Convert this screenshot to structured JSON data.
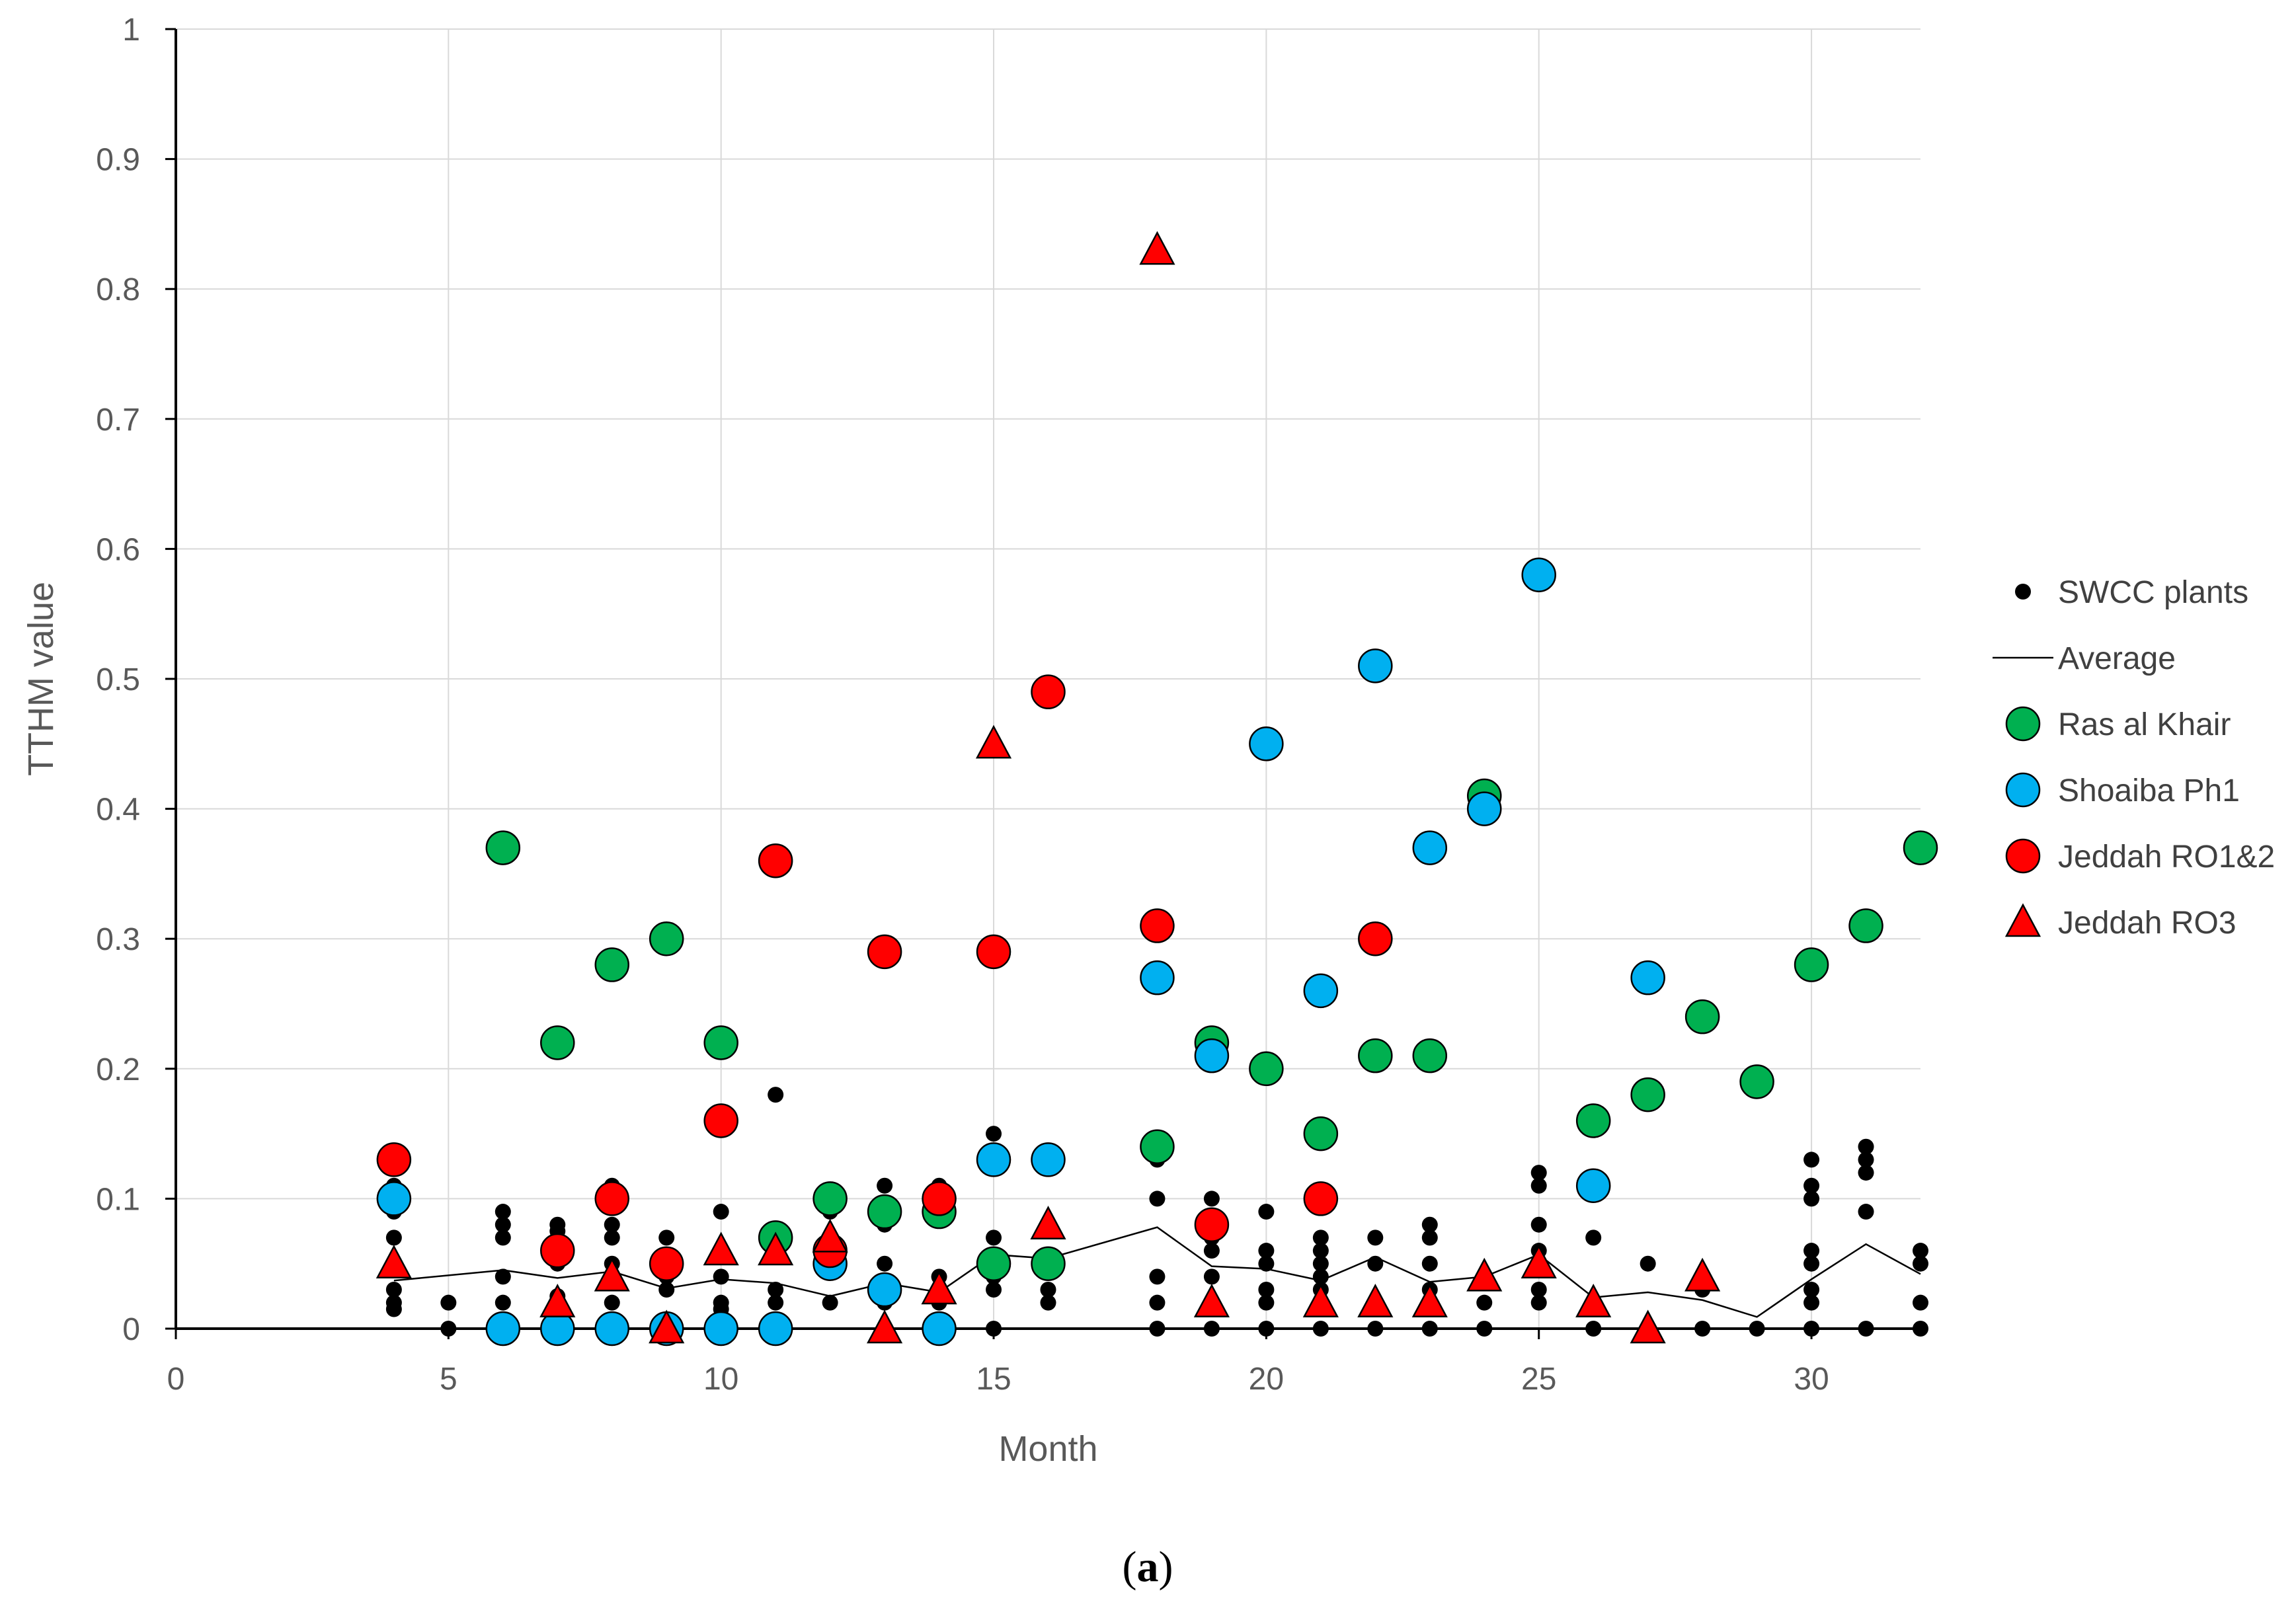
{
  "caption_letter": "a",
  "colors": {
    "swcc": "#000000",
    "average": "#000000",
    "ras_al_khair": "#00b050",
    "shoaiba": "#00b0f0",
    "jeddah_ro12": "#ff0000",
    "jeddah_ro3": "#ff0000",
    "grid": "#d9d9d9",
    "text": "#595959"
  },
  "chart_data": {
    "type": "scatter",
    "title": "",
    "xlabel": "Month",
    "ylabel": "TTHM value",
    "xlim": [
      0,
      32
    ],
    "ylim": [
      0,
      1
    ],
    "xticks": [
      0,
      5,
      10,
      15,
      20,
      25,
      30
    ],
    "xtick_labels": [
      "0",
      "5",
      "10",
      "15",
      "20",
      "25",
      "30"
    ],
    "yticks": [
      0,
      0.1,
      0.2,
      0.3,
      0.4,
      0.5,
      0.6,
      0.7,
      0.8,
      0.9,
      1
    ],
    "ytick_labels": [
      "0",
      "0.1",
      "0.2",
      "0.3",
      "0.4",
      "0.5",
      "0.6",
      "0.7",
      "0.8",
      "0.9",
      "1"
    ],
    "grid": "vertical and horizontal major gridlines",
    "legend_position": "right",
    "legend": [
      "SWCC plants",
      "Average",
      "Ras al Khair",
      "Shoaiba Ph1",
      "Jeddah RO1&2",
      "Jeddah RO3"
    ],
    "series": [
      {
        "name": "SWCC plants",
        "key": "swcc",
        "marker": "small-circle",
        "points": [
          [
            4,
            0.11
          ],
          [
            4,
            0.09
          ],
          [
            4,
            0.07
          ],
          [
            4,
            0.03
          ],
          [
            4,
            0.02
          ],
          [
            4,
            0.015
          ],
          [
            5,
            0.02
          ],
          [
            5,
            0.0
          ],
          [
            6,
            0.09
          ],
          [
            6,
            0.08
          ],
          [
            6,
            0.07
          ],
          [
            6,
            0.04
          ],
          [
            6,
            0.02
          ],
          [
            7,
            0.08
          ],
          [
            7,
            0.075
          ],
          [
            7,
            0.05
          ],
          [
            7,
            0.025
          ],
          [
            7,
            0.015
          ],
          [
            8,
            0.11
          ],
          [
            8,
            0.08
          ],
          [
            8,
            0.07
          ],
          [
            8,
            0.05
          ],
          [
            8,
            0.02
          ],
          [
            9,
            0.07
          ],
          [
            9,
            0.055
          ],
          [
            9,
            0.04
          ],
          [
            9,
            0.03
          ],
          [
            10,
            0.09
          ],
          [
            10,
            0.04
          ],
          [
            10,
            0.02
          ],
          [
            10,
            0.015
          ],
          [
            10,
            0.0
          ],
          [
            11,
            0.18
          ],
          [
            11,
            0.07
          ],
          [
            11,
            0.03
          ],
          [
            11,
            0.02
          ],
          [
            12,
            0.09
          ],
          [
            12,
            0.06
          ],
          [
            12,
            0.02
          ],
          [
            13,
            0.11
          ],
          [
            13,
            0.08
          ],
          [
            13,
            0.05
          ],
          [
            13,
            0.02
          ],
          [
            14,
            0.11
          ],
          [
            14,
            0.04
          ],
          [
            14,
            0.02
          ],
          [
            15,
            0.15
          ],
          [
            15,
            0.07
          ],
          [
            15,
            0.04
          ],
          [
            15,
            0.03
          ],
          [
            15,
            0.0
          ],
          [
            16,
            0.03
          ],
          [
            16,
            0.02
          ],
          [
            18,
            0.13
          ],
          [
            18,
            0.1
          ],
          [
            18,
            0.04
          ],
          [
            18,
            0.02
          ],
          [
            18,
            0.0
          ],
          [
            19,
            0.1
          ],
          [
            19,
            0.07
          ],
          [
            19,
            0.06
          ],
          [
            19,
            0.04
          ],
          [
            19,
            0.02
          ],
          [
            19,
            0.0
          ],
          [
            20,
            0.09
          ],
          [
            20,
            0.06
          ],
          [
            20,
            0.05
          ],
          [
            20,
            0.03
          ],
          [
            20,
            0.02
          ],
          [
            20,
            0.0
          ],
          [
            21,
            0.07
          ],
          [
            21,
            0.06
          ],
          [
            21,
            0.05
          ],
          [
            21,
            0.04
          ],
          [
            21,
            0.03
          ],
          [
            21,
            0.02
          ],
          [
            21,
            0.0
          ],
          [
            22,
            0.07
          ],
          [
            22,
            0.05
          ],
          [
            22,
            0.02
          ],
          [
            22,
            0.0
          ],
          [
            23,
            0.08
          ],
          [
            23,
            0.07
          ],
          [
            23,
            0.05
          ],
          [
            23,
            0.03
          ],
          [
            23,
            0.02
          ],
          [
            23,
            0.0
          ],
          [
            24,
            0.04
          ],
          [
            24,
            0.02
          ],
          [
            24,
            0.0
          ],
          [
            25,
            0.12
          ],
          [
            25,
            0.11
          ],
          [
            25,
            0.08
          ],
          [
            25,
            0.06
          ],
          [
            25,
            0.03
          ],
          [
            25,
            0.02
          ],
          [
            26,
            0.07
          ],
          [
            26,
            0.0
          ],
          [
            27,
            0.05
          ],
          [
            27,
            0.0
          ],
          [
            28,
            0.03
          ],
          [
            28,
            0.0
          ],
          [
            29,
            0.0
          ],
          [
            30,
            0.13
          ],
          [
            30,
            0.11
          ],
          [
            30,
            0.1
          ],
          [
            30,
            0.06
          ],
          [
            30,
            0.05
          ],
          [
            30,
            0.03
          ],
          [
            30,
            0.02
          ],
          [
            30,
            0.0
          ],
          [
            31,
            0.14
          ],
          [
            31,
            0.13
          ],
          [
            31,
            0.12
          ],
          [
            31,
            0.09
          ],
          [
            31,
            0.0
          ],
          [
            32,
            0.06
          ],
          [
            32,
            0.05
          ],
          [
            32,
            0.02
          ],
          [
            32,
            0.0
          ]
        ]
      },
      {
        "name": "Average",
        "key": "average",
        "marker": "line",
        "points": [
          [
            4,
            0.037
          ],
          [
            6,
            0.045
          ],
          [
            7,
            0.039
          ],
          [
            8,
            0.044
          ],
          [
            9,
            0.031
          ],
          [
            10,
            0.038
          ],
          [
            11,
            0.035
          ],
          [
            12,
            0.025
          ],
          [
            13,
            0.035
          ],
          [
            14,
            0.028
          ],
          [
            15,
            0.057
          ],
          [
            16,
            0.054
          ],
          [
            18,
            0.078
          ],
          [
            19,
            0.048
          ],
          [
            20,
            0.046
          ],
          [
            21,
            0.037
          ],
          [
            22,
            0.055
          ],
          [
            23,
            0.036
          ],
          [
            24,
            0.04
          ],
          [
            25,
            0.057
          ],
          [
            26,
            0.024
          ],
          [
            27,
            0.028
          ],
          [
            28,
            0.022
          ],
          [
            29,
            0.009
          ],
          [
            30,
            0.038
          ],
          [
            31,
            0.065
          ],
          [
            32,
            0.042
          ]
        ]
      },
      {
        "name": "Ras al Khair",
        "key": "ras_al_khair",
        "marker": "circle",
        "points": [
          [
            6,
            0.37
          ],
          [
            7,
            0.22
          ],
          [
            8,
            0.28
          ],
          [
            9,
            0.3
          ],
          [
            10,
            0.22
          ],
          [
            11,
            0.07
          ],
          [
            12,
            0.1
          ],
          [
            13,
            0.09
          ],
          [
            14,
            0.09
          ],
          [
            15,
            0.05
          ],
          [
            16,
            0.05
          ],
          [
            18,
            0.14
          ],
          [
            19,
            0.22
          ],
          [
            20,
            0.2
          ],
          [
            21,
            0.15
          ],
          [
            22,
            0.21
          ],
          [
            23,
            0.21
          ],
          [
            24,
            0.41
          ],
          [
            26,
            0.16
          ],
          [
            27,
            0.18
          ],
          [
            28,
            0.24
          ],
          [
            29,
            0.19
          ],
          [
            30,
            0.28
          ],
          [
            31,
            0.31
          ],
          [
            32,
            0.37
          ]
        ]
      },
      {
        "name": "Shoaiba Ph1",
        "key": "shoaiba",
        "marker": "circle",
        "points": [
          [
            4,
            0.1
          ],
          [
            6,
            0.0
          ],
          [
            7,
            0.0
          ],
          [
            8,
            0.0
          ],
          [
            9,
            0.0
          ],
          [
            10,
            0.0
          ],
          [
            11,
            0.0
          ],
          [
            12,
            0.05
          ],
          [
            13,
            0.03
          ],
          [
            14,
            0.0
          ],
          [
            15,
            0.13
          ],
          [
            16,
            0.13
          ],
          [
            18,
            0.27
          ],
          [
            19,
            0.21
          ],
          [
            20,
            0.45
          ],
          [
            21,
            0.26
          ],
          [
            22,
            0.51
          ],
          [
            23,
            0.37
          ],
          [
            24,
            0.4
          ],
          [
            25,
            0.58
          ],
          [
            26,
            0.11
          ],
          [
            27,
            0.27
          ]
        ]
      },
      {
        "name": "Jeddah RO1&2",
        "key": "jeddah_ro12",
        "marker": "circle",
        "points": [
          [
            4,
            0.13
          ],
          [
            7,
            0.06
          ],
          [
            8,
            0.1
          ],
          [
            9,
            0.05
          ],
          [
            10,
            0.16
          ],
          [
            11,
            0.36
          ],
          [
            12,
            0.06
          ],
          [
            13,
            0.29
          ],
          [
            14,
            0.1
          ],
          [
            15,
            0.29
          ],
          [
            16,
            0.49
          ],
          [
            18,
            0.31
          ],
          [
            19,
            0.08
          ],
          [
            21,
            0.1
          ],
          [
            22,
            0.3
          ]
        ]
      },
      {
        "name": "Jeddah RO3",
        "key": "jeddah_ro3",
        "marker": "triangle",
        "points": [
          [
            4,
            0.05
          ],
          [
            7,
            0.02
          ],
          [
            8,
            0.04
          ],
          [
            9,
            0.0
          ],
          [
            10,
            0.06
          ],
          [
            11,
            0.06
          ],
          [
            12,
            0.07
          ],
          [
            13,
            0.0
          ],
          [
            14,
            0.03
          ],
          [
            15,
            0.45
          ],
          [
            16,
            0.08
          ],
          [
            18,
            0.83
          ],
          [
            19,
            0.02
          ],
          [
            21,
            0.02
          ],
          [
            22,
            0.02
          ],
          [
            23,
            0.02
          ],
          [
            24,
            0.04
          ],
          [
            25,
            0.05
          ],
          [
            26,
            0.02
          ],
          [
            27,
            0.0
          ],
          [
            28,
            0.04
          ]
        ]
      }
    ]
  }
}
